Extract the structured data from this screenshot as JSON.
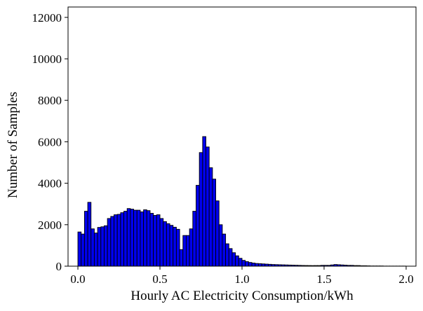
{
  "chart_data": {
    "type": "bar",
    "xlabel": "Hourly AC Electricity Consumption/kWh",
    "ylabel": "Number of Samples",
    "xlim": [
      -0.06,
      2.06
    ],
    "ylim": [
      0,
      12500
    ],
    "xticks": [
      "0.0",
      "0.5",
      "1.0",
      "1.5",
      "2.0"
    ],
    "xtick_values": [
      0.0,
      0.5,
      1.0,
      1.5,
      2.0
    ],
    "yticks": [
      "0",
      "2000",
      "4000",
      "6000",
      "8000",
      "10000",
      "12000"
    ],
    "ytick_values": [
      0,
      2000,
      4000,
      6000,
      8000,
      10000,
      12000
    ],
    "bin_start": 0.0,
    "bin_width": 0.02,
    "values": [
      1650,
      1550,
      2650,
      3080,
      1800,
      1600,
      1870,
      1900,
      1950,
      2300,
      2400,
      2480,
      2500,
      2580,
      2650,
      2780,
      2750,
      2700,
      2700,
      2620,
      2720,
      2680,
      2550,
      2450,
      2480,
      2300,
      2150,
      2050,
      1970,
      1880,
      1780,
      800,
      1480,
      1480,
      1800,
      2650,
      3900,
      5480,
      6250,
      5750,
      4750,
      4200,
      3150,
      2000,
      1550,
      1080,
      850,
      650,
      500,
      380,
      280,
      220,
      180,
      150,
      130,
      120,
      110,
      100,
      90,
      80,
      75,
      70,
      65,
      60,
      55,
      50,
      45,
      40,
      35,
      32,
      30,
      28,
      30,
      30,
      40,
      40,
      40,
      60,
      80,
      70,
      60,
      50,
      40,
      40,
      30,
      30,
      20,
      20,
      15,
      10,
      10,
      10,
      10,
      5,
      5,
      5,
      5,
      5,
      5,
      5
    ],
    "bar_color": "#0000ee",
    "edge_color": "#000000",
    "grid": false,
    "legend": "none"
  }
}
